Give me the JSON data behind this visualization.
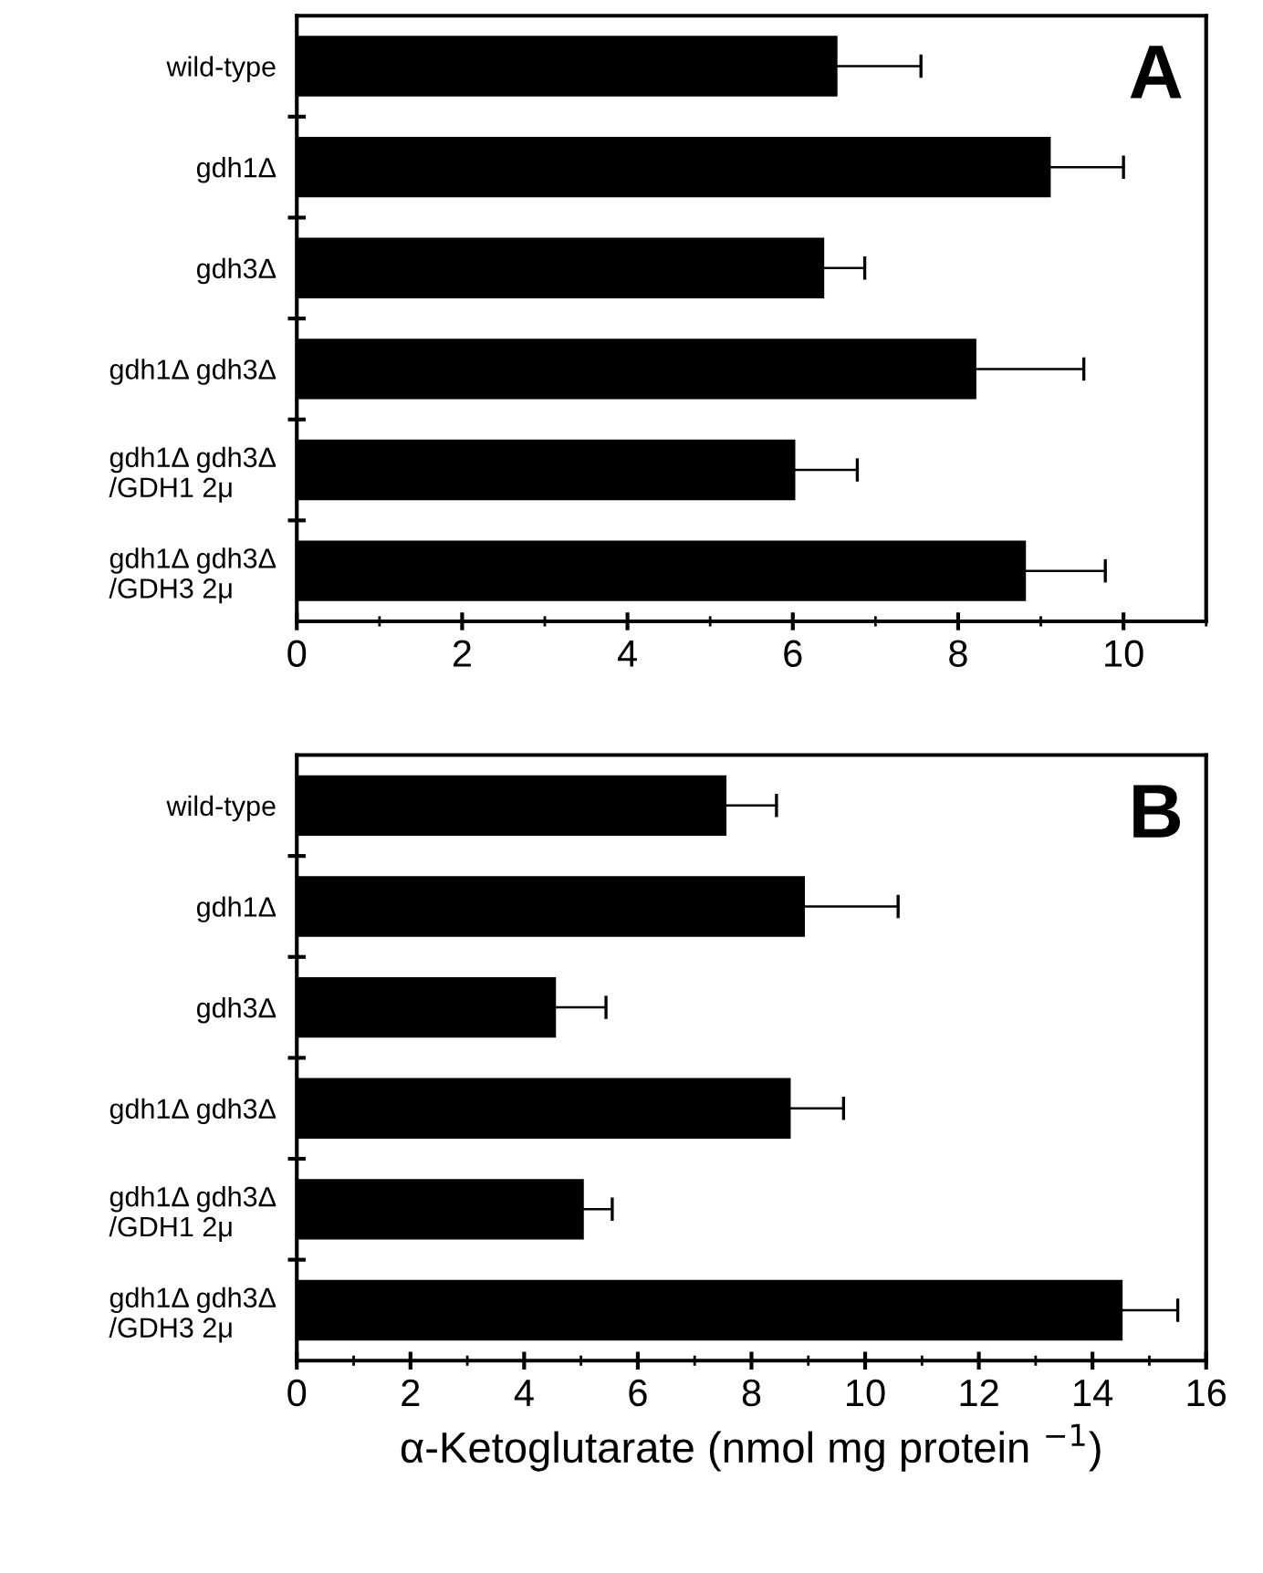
{
  "chart_data": [
    {
      "type": "bar",
      "orientation": "horizontal",
      "categories": [
        "wild-type",
        "gdh1Δ",
        "gdh3Δ",
        "gdh1Δ gdh3Δ",
        "gdh1Δ gdh3Δ\n/GDH1 2μ",
        "gdh1Δ gdh3Δ\n/GDH3 2μ"
      ],
      "values": [
        6.54,
        9.12,
        6.38,
        8.22,
        6.03,
        8.82
      ],
      "errors": [
        [
          6.54,
          7.55
        ],
        [
          9.12,
          10.0
        ],
        [
          6.38,
          6.87
        ],
        [
          8.22,
          9.52
        ],
        [
          6.03,
          6.78
        ],
        [
          8.82,
          9.78
        ]
      ],
      "color": "#000000",
      "xlim": [
        0,
        11
      ],
      "xticks": [
        0,
        2,
        4,
        6,
        8,
        10
      ],
      "annotations": [
        "A"
      ]
    },
    {
      "type": "bar",
      "orientation": "horizontal",
      "categories": [
        "wild-type",
        "gdh1Δ",
        "gdh3Δ",
        "gdh1Δ gdh3Δ",
        "gdh1Δ gdh3Δ\n/GDH1 2μ",
        "gdh1Δ gdh3Δ\n/GDH3 2μ"
      ],
      "values": [
        7.56,
        8.94,
        4.56,
        8.69,
        5.05,
        14.53
      ],
      "errors": [
        [
          7.56,
          8.44
        ],
        [
          8.94,
          10.58
        ],
        [
          4.56,
          5.44
        ],
        [
          8.69,
          9.62
        ],
        [
          5.05,
          5.55
        ],
        [
          14.53,
          15.5
        ]
      ],
      "color": "#000000",
      "xlim": [
        0,
        16
      ],
      "xticks": [
        0,
        2,
        4,
        6,
        8,
        10,
        12,
        14,
        16
      ],
      "xlabel": "α-Ketoglutarate (nmol mg protein $^{−1}$)",
      "annotations": [
        "B"
      ]
    }
  ]
}
